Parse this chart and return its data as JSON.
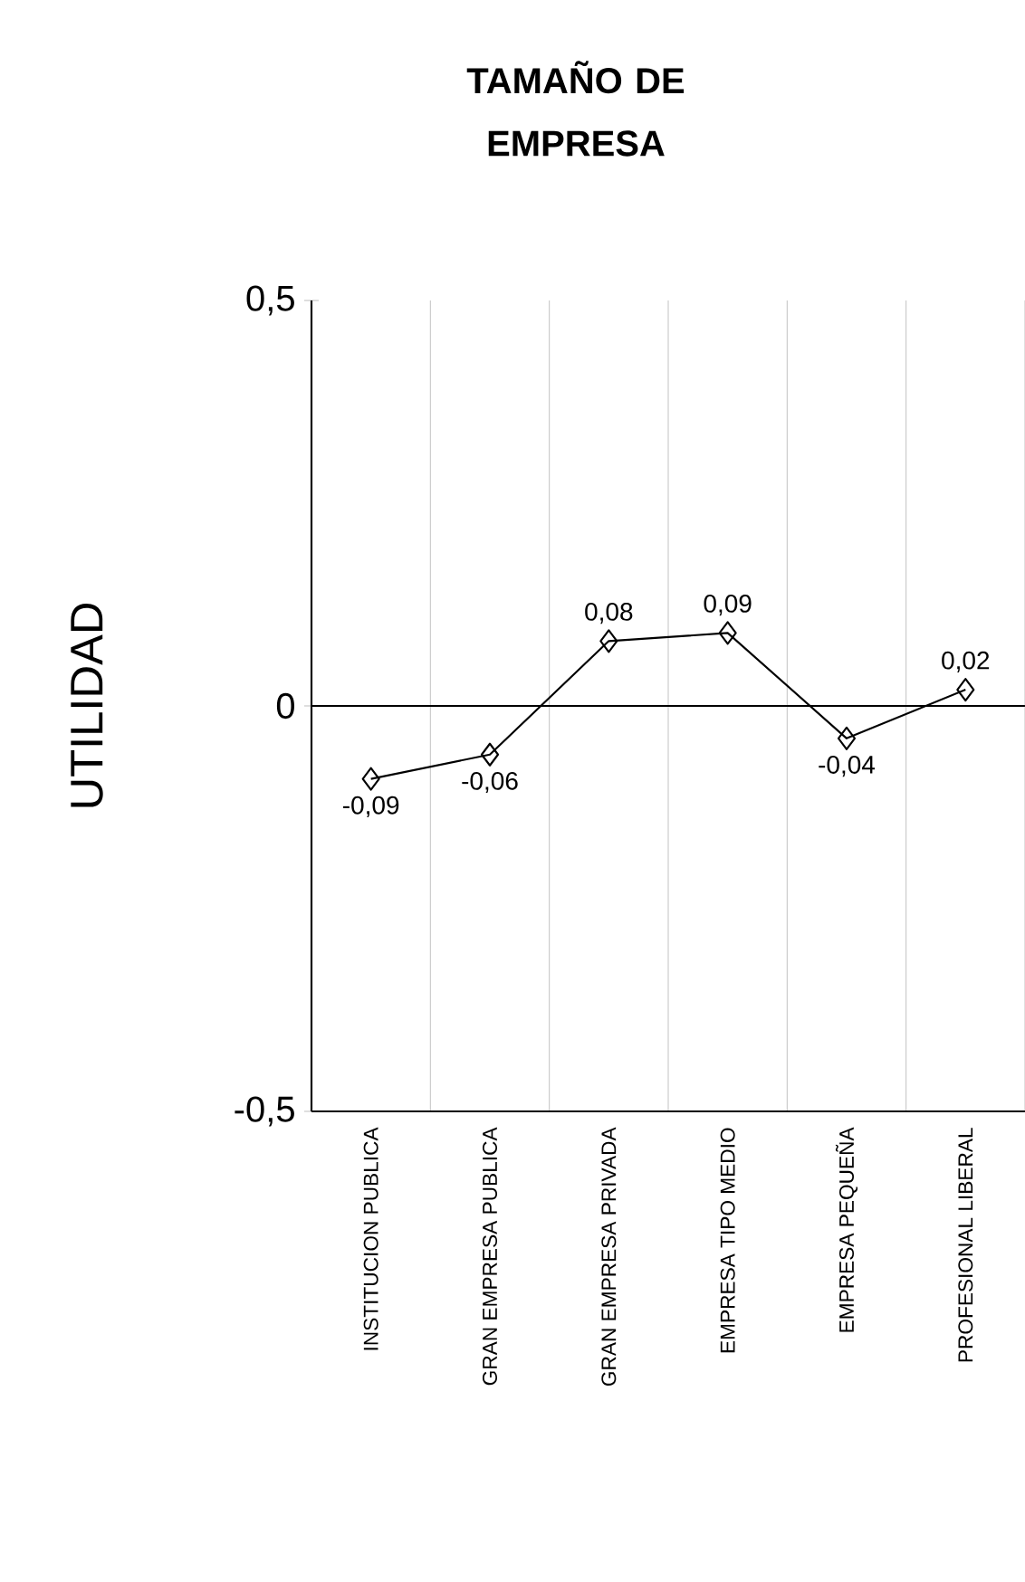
{
  "chart_data": {
    "type": "line",
    "title": "TAMAÑO DE EMPRESA",
    "ylabel": "UTILIDAD",
    "categories": [
      "INSTITUCION PUBLICA",
      "GRAN EMPRESA PUBLICA",
      "GRAN EMPRESA PRIVADA",
      "EMPRESA TIPO MEDIO",
      "EMPRESA PEQUEÑA",
      "PROFESIONAL LIBERAL"
    ],
    "values": [
      -0.09,
      -0.06,
      0.08,
      0.09,
      -0.04,
      0.02
    ],
    "value_labels": [
      "-0,09",
      "-0,06",
      "0,08",
      "0,09",
      "-0,04",
      "0,02"
    ],
    "color": "#000000",
    "marker": "diamond",
    "line_style": "solid",
    "ylim": [
      -0.5,
      0.5
    ],
    "yticks": [
      {
        "value": -0.5,
        "label": "-0,5"
      },
      0,
      {
        "value": 0.5,
        "label": "0,5"
      }
    ],
    "ref_lines": [
      {
        "axis": "y",
        "value": 0
      }
    ],
    "grid": "x"
  }
}
